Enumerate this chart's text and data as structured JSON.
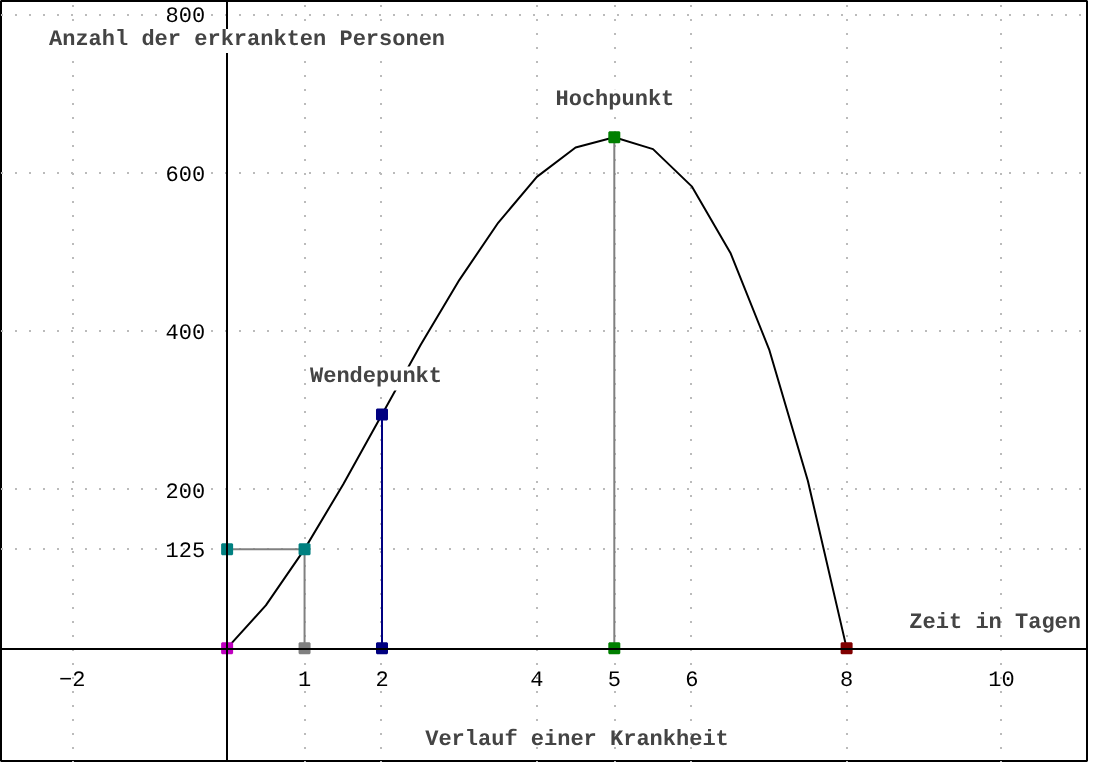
{
  "chart_data": {
    "type": "line",
    "title": "Verlauf einer Krankheit",
    "xlabel": "Zeit in Tagen",
    "ylabel": "Anzahl der erkrankten Personen",
    "xlim": [
      -2.92,
      11.13
    ],
    "ylim": [
      -145,
      817
    ],
    "xticks": [
      -2,
      1,
      2,
      4,
      5,
      6,
      8,
      10
    ],
    "yticks": [
      125,
      200,
      400,
      600,
      800
    ],
    "grid": true,
    "annotations": [
      {
        "text": "Hochpunkt",
        "x": 5,
        "y": 645
      },
      {
        "text": "Wendepunkt",
        "x": 2,
        "y": 295
      }
    ],
    "series": [
      {
        "color": "#000000",
        "marker": "none",
        "x": [
          0,
          0.5,
          1,
          1.5,
          2,
          2.5,
          3,
          3.5,
          4,
          4.5,
          5,
          5.5,
          6,
          6.5,
          7,
          7.5,
          8
        ],
        "values": [
          0,
          54,
          125,
          207,
          295,
          383,
          465,
          537,
          595,
          632,
          645,
          630,
          583,
          499,
          377,
          211,
          0
        ]
      },
      {
        "color": "#808080",
        "marker": "none",
        "x": [
          0,
          1
        ],
        "values": [
          125,
          125
        ]
      },
      {
        "color": "#808080",
        "marker": "none",
        "x": [
          1,
          1
        ],
        "values": [
          0,
          125
        ]
      },
      {
        "color": "#000080",
        "marker": "none",
        "x": [
          2,
          2
        ],
        "values": [
          0,
          295
        ]
      },
      {
        "color": "#808080",
        "marker": "none",
        "x": [
          5,
          5
        ],
        "values": [
          0,
          645
        ]
      },
      {
        "type": "scatter",
        "marker": "square",
        "color": "#c000c0",
        "x": [
          0
        ],
        "values": [
          0
        ]
      },
      {
        "type": "scatter",
        "marker": "square",
        "color": "#808080",
        "x": [
          1
        ],
        "values": [
          0
        ]
      },
      {
        "type": "scatter",
        "marker": "square",
        "color": "#000080",
        "x": [
          2,
          2
        ],
        "values": [
          0,
          295
        ]
      },
      {
        "type": "scatter",
        "marker": "square",
        "color": "#008000",
        "x": [
          5,
          5
        ],
        "values": [
          0,
          645
        ]
      },
      {
        "type": "scatter",
        "marker": "square",
        "color": "#800000",
        "x": [
          8
        ],
        "values": [
          0
        ]
      },
      {
        "type": "scatter",
        "marker": "square",
        "color": "#008080",
        "x": [
          0,
          1
        ],
        "values": [
          125,
          125
        ]
      }
    ]
  }
}
